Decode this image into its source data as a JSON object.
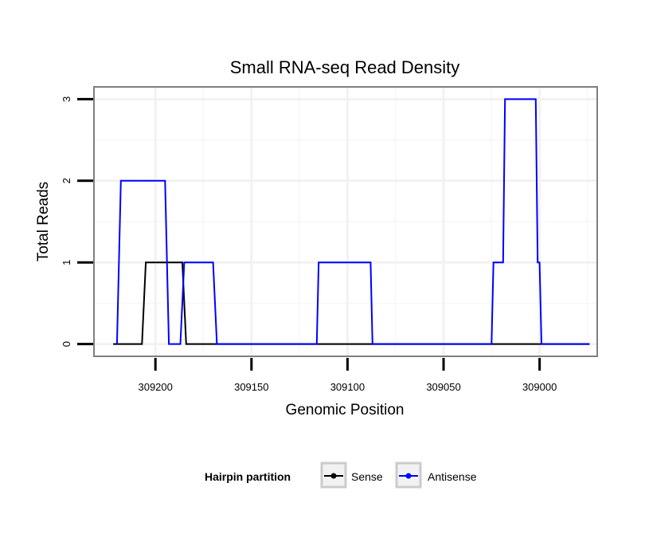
{
  "chart_data": {
    "type": "line",
    "title": "Small RNA-seq Read Density",
    "xlabel": "Genomic Position",
    "ylabel": "Total Reads",
    "x_reversed": true,
    "xlim": [
      309232,
      308970
    ],
    "ylim": [
      -0.15,
      3.15
    ],
    "x_ticks": [
      309200,
      309150,
      309100,
      309050,
      309000
    ],
    "y_ticks": [
      0,
      1,
      2,
      3
    ],
    "grid": true,
    "legend": {
      "title": "Hairpin partition",
      "position": "bottom"
    },
    "series": [
      {
        "name": "Sense",
        "color": "#000000",
        "points": [
          [
            309222,
            0
          ],
          [
            309207,
            0
          ],
          [
            309205,
            1
          ],
          [
            309186,
            1
          ],
          [
            309184,
            0
          ],
          [
            308974,
            0
          ]
        ]
      },
      {
        "name": "Antisense",
        "color": "#0000ff",
        "points": [
          [
            309220,
            0
          ],
          [
            309218,
            2
          ],
          [
            309195,
            2
          ],
          [
            309193,
            0
          ],
          [
            309187,
            0
          ],
          [
            309185,
            1
          ],
          [
            309170,
            1
          ],
          [
            309168,
            0
          ],
          [
            309116,
            0
          ],
          [
            309115,
            1
          ],
          [
            309088,
            1
          ],
          [
            309087,
            0
          ],
          [
            309025,
            0
          ],
          [
            309024,
            1
          ],
          [
            309019,
            1
          ],
          [
            309018,
            3
          ],
          [
            309002,
            3
          ],
          [
            309001,
            1
          ],
          [
            309000,
            1
          ],
          [
            308999,
            0
          ],
          [
            308974,
            0
          ]
        ]
      }
    ]
  }
}
